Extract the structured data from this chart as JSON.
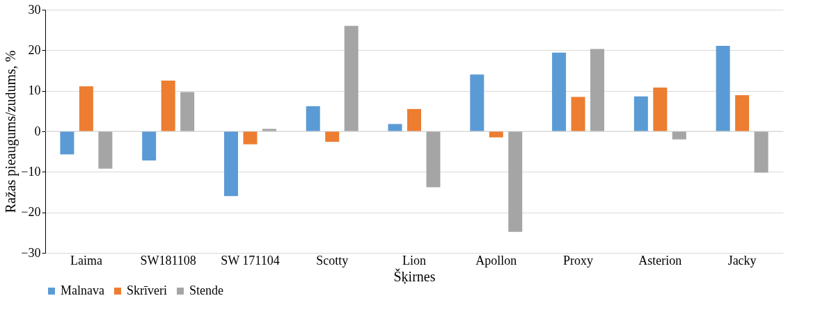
{
  "chart_data": {
    "type": "bar",
    "xlabel": "Šķirnes",
    "ylabel": "Ražas pieaugums/zudums, %",
    "categories": [
      "Laima",
      "SW181108",
      "SW 171104",
      "Scotty",
      "Lion",
      "Apollon",
      "Proxy",
      "Asterion",
      "Jacky"
    ],
    "series": [
      {
        "name": "Malnava",
        "color": "#5b9bd5",
        "values": [
          -5.7,
          -7.2,
          -16.0,
          6.2,
          1.8,
          14.0,
          19.4,
          8.6,
          21.1
        ]
      },
      {
        "name": "Skrīveri",
        "color": "#ed7d31",
        "values": [
          11.1,
          12.5,
          -3.2,
          -2.6,
          5.5,
          -1.5,
          8.5,
          10.8,
          8.9
        ]
      },
      {
        "name": "Stende",
        "color": "#a5a5a5",
        "values": [
          -9.2,
          9.7,
          0.6,
          26.0,
          -13.8,
          -24.8,
          20.3,
          -2.0,
          -10.2
        ]
      }
    ],
    "ylim": [
      -30,
      30
    ],
    "yticks": [
      -30,
      -20,
      -10,
      0,
      10,
      20,
      30
    ],
    "grid": "y",
    "legend": "bottom"
  }
}
